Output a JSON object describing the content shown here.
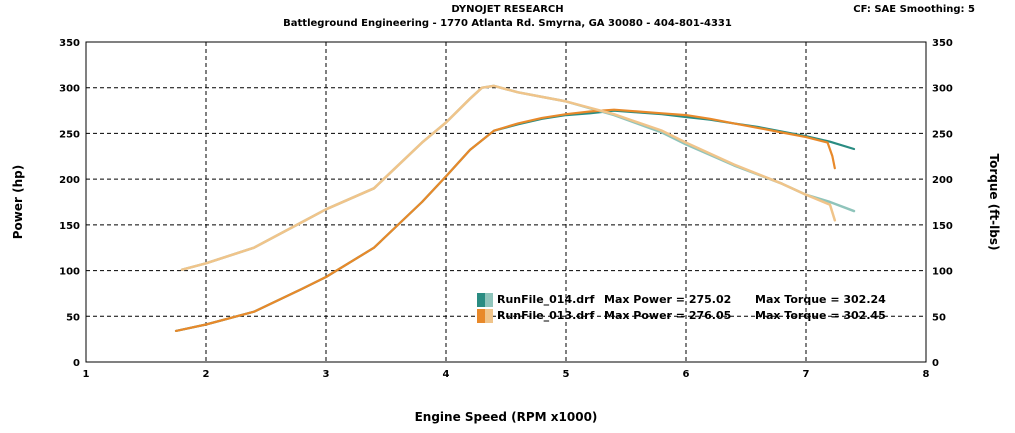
{
  "header": {
    "title": "DYNOJET RESEARCH",
    "subtitle": "Battleground Engineering - 1770 Atlanta Rd.  Smyrna, GA 30080 - 404-801-4331",
    "settings": "CF: SAE  Smoothing: 5"
  },
  "chart_data": {
    "type": "line",
    "xlabel": "Engine Speed (RPM x1000)",
    "ylabel": "Power (hp)",
    "y2label": "Torque (ft-lbs)",
    "xlim": [
      1,
      8
    ],
    "ylim": [
      0,
      350
    ],
    "y2lim": [
      0,
      350
    ],
    "xticks": [
      1,
      2,
      3,
      4,
      5,
      6,
      7,
      8
    ],
    "yticks": [
      0,
      50,
      100,
      150,
      200,
      250,
      300,
      350
    ],
    "grid": true,
    "legend_position": "lower-center",
    "series": [
      {
        "name": "RunFile_014.drf Max Power = 275.02",
        "quantity": "power",
        "color": "#2a8c82",
        "x": [
          1.75,
          2.0,
          2.4,
          2.8,
          3.0,
          3.4,
          3.8,
          4.0,
          4.2,
          4.4,
          4.6,
          4.8,
          5.0,
          5.2,
          5.4,
          5.6,
          5.8,
          6.0,
          6.2,
          6.4,
          6.6,
          6.8,
          7.0,
          7.2,
          7.4
        ],
        "y": [
          34,
          41,
          55,
          80,
          93,
          125,
          175,
          203,
          232,
          253,
          260,
          266,
          270,
          272,
          275,
          273,
          271,
          268,
          265,
          261,
          257,
          252,
          247,
          241,
          233
        ]
      },
      {
        "name": "RunFile_014.drf Max Torque = 302.24",
        "quantity": "torque",
        "color": "#8fc4bb",
        "x": [
          1.8,
          2.0,
          2.4,
          2.8,
          3.0,
          3.4,
          3.8,
          4.0,
          4.2,
          4.3,
          4.4,
          4.6,
          4.8,
          5.0,
          5.4,
          5.8,
          6.0,
          6.4,
          6.8,
          7.0,
          7.2,
          7.4
        ],
        "y": [
          101,
          108,
          125,
          153,
          167,
          190,
          240,
          262,
          288,
          300,
          302,
          295,
          290,
          285,
          270,
          251,
          238,
          215,
          195,
          183,
          175,
          165
        ]
      },
      {
        "name": "RunFile_013.drf Max Power = 276.05",
        "quantity": "power",
        "color": "#e8892a",
        "x": [
          1.75,
          2.0,
          2.4,
          2.8,
          3.0,
          3.4,
          3.8,
          4.0,
          4.2,
          4.4,
          4.6,
          4.8,
          5.0,
          5.2,
          5.4,
          5.6,
          5.8,
          6.0,
          6.2,
          6.4,
          6.6,
          6.8,
          7.0,
          7.18,
          7.22,
          7.24
        ],
        "y": [
          34,
          41,
          55,
          80,
          93,
          125,
          175,
          203,
          232,
          253,
          261,
          267,
          271,
          274,
          276,
          274,
          272,
          270,
          266,
          261,
          256,
          251,
          246,
          240,
          225,
          212
        ]
      },
      {
        "name": "RunFile_013.drf Max Torque = 302.45",
        "quantity": "torque",
        "color": "#f0c48a",
        "x": [
          1.8,
          2.0,
          2.4,
          2.8,
          3.0,
          3.4,
          3.8,
          4.0,
          4.2,
          4.3,
          4.4,
          4.6,
          4.8,
          5.0,
          5.4,
          5.8,
          6.0,
          6.4,
          6.8,
          7.0,
          7.2,
          7.24
        ],
        "y": [
          101,
          108,
          125,
          153,
          167,
          190,
          240,
          262,
          288,
          300,
          302,
          295,
          290,
          285,
          271,
          253,
          240,
          216,
          195,
          183,
          172,
          155
        ]
      }
    ],
    "legend": [
      {
        "file": "RunFile_014.drf",
        "power": "Max Power = 275.02",
        "torque": "Max Torque = 302.24",
        "color_power": "#2a8c82",
        "color_torque": "#8fc4bb"
      },
      {
        "file": "RunFile_013.drf",
        "power": "Max Power = 276.05",
        "torque": "Max Torque = 302.45",
        "color_power": "#e8892a",
        "color_torque": "#f0c48a"
      }
    ]
  }
}
